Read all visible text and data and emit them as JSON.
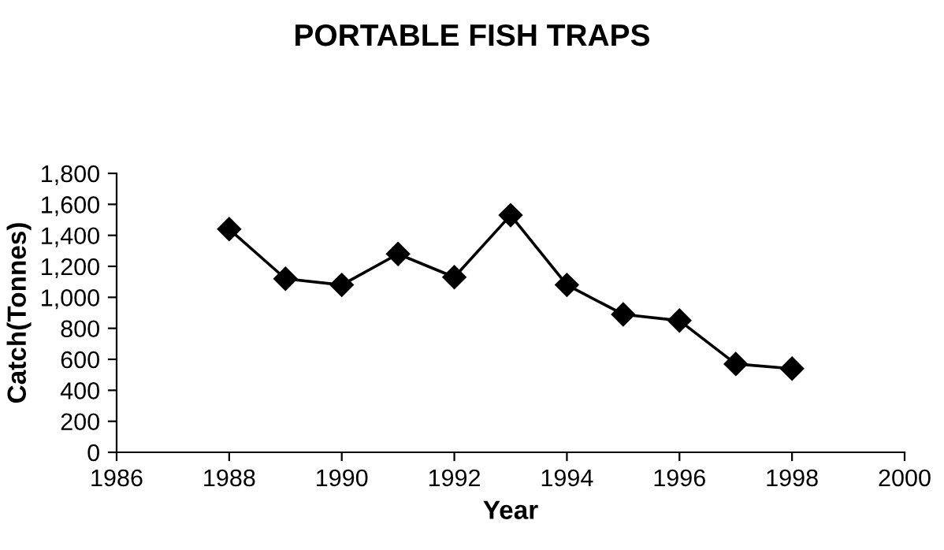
{
  "chart_data": {
    "type": "line",
    "title": "PORTABLE FISH TRAPS",
    "xlabel": "Year",
    "ylabel": "Catch(Tonnes)",
    "x": [
      1988,
      1989,
      1990,
      1991,
      1992,
      1993,
      1994,
      1995,
      1996,
      1997,
      1998
    ],
    "series": [
      {
        "color": "#000000",
        "values": [
          1440,
          1120,
          1080,
          1280,
          1130,
          1530,
          1080,
          890,
          850,
          570,
          540
        ]
      }
    ],
    "xlim": [
      1986,
      2000
    ],
    "xticks": [
      1986,
      1988,
      1990,
      1992,
      1994,
      1996,
      1998,
      2000
    ],
    "ylim": [
      0,
      1800
    ],
    "yticks": [
      {
        "value": 0,
        "label": "0"
      },
      {
        "value": 200,
        "label": "200"
      },
      {
        "value": 400,
        "label": "400"
      },
      {
        "value": 600,
        "label": "600"
      },
      {
        "value": 800,
        "label": "800"
      },
      {
        "value": 1000,
        "label": "1,000"
      },
      {
        "value": 1200,
        "label": "1,200"
      },
      {
        "value": 1400,
        "label": "1,400"
      },
      {
        "value": 1600,
        "label": "1,600"
      },
      {
        "value": 1800,
        "label": "1,800"
      }
    ],
    "grid": false,
    "legend": false,
    "marker": "diamond",
    "line_style": "solid"
  }
}
